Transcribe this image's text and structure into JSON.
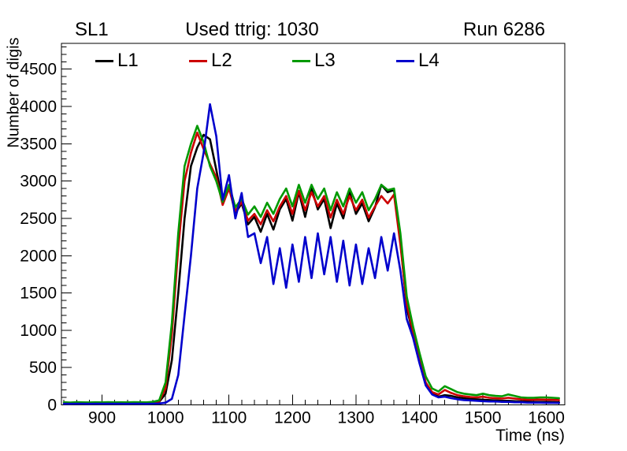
{
  "header": {
    "left": "SL1",
    "center": "Used ttrig: 1030",
    "right": "Run 6286"
  },
  "legend": {
    "items": [
      {
        "label": "L1",
        "color": "#000000"
      },
      {
        "label": "L2",
        "color": "#cc0000"
      },
      {
        "label": "L3",
        "color": "#009900"
      },
      {
        "label": "L4",
        "color": "#0000cc"
      }
    ]
  },
  "chart_data": {
    "type": "line",
    "title": "Used ttrig: 1030",
    "xlabel": "Time (ns)",
    "ylabel": "Number of digis",
    "xlim": [
      836,
      1629
    ],
    "ylim": [
      0,
      4846
    ],
    "grid": false,
    "legend_position": "top-inside",
    "x_major_ticks": [
      900,
      1000,
      1100,
      1200,
      1300,
      1400,
      1500,
      1600
    ],
    "x_minor_step": 20,
    "y_major_ticks": [
      0,
      500,
      1000,
      1500,
      2000,
      2500,
      3000,
      3500,
      4000,
      4500
    ],
    "y_minor_step": 100,
    "x": [
      840,
      850,
      860,
      870,
      880,
      890,
      900,
      910,
      920,
      930,
      940,
      950,
      960,
      970,
      980,
      990,
      1000,
      1010,
      1020,
      1030,
      1040,
      1050,
      1060,
      1070,
      1080,
      1090,
      1100,
      1110,
      1120,
      1130,
      1140,
      1150,
      1160,
      1170,
      1180,
      1190,
      1200,
      1210,
      1220,
      1230,
      1240,
      1250,
      1260,
      1270,
      1280,
      1290,
      1300,
      1310,
      1320,
      1330,
      1340,
      1350,
      1360,
      1370,
      1380,
      1390,
      1400,
      1410,
      1420,
      1430,
      1440,
      1450,
      1460,
      1470,
      1480,
      1490,
      1500,
      1510,
      1520,
      1530,
      1540,
      1550,
      1560,
      1570,
      1580,
      1590,
      1600,
      1610,
      1620
    ],
    "series": [
      {
        "name": "L1",
        "color": "#000000",
        "values": [
          20,
          18,
          22,
          20,
          19,
          21,
          20,
          22,
          20,
          21,
          20,
          22,
          21,
          20,
          25,
          40,
          150,
          600,
          1500,
          2500,
          3200,
          3450,
          3620,
          3560,
          3150,
          2720,
          2920,
          2570,
          2700,
          2420,
          2520,
          2320,
          2560,
          2350,
          2620,
          2760,
          2470,
          2850,
          2520,
          2900,
          2620,
          2760,
          2370,
          2700,
          2500,
          2850,
          2560,
          2700,
          2460,
          2650,
          2950,
          2850,
          2880,
          2200,
          1300,
          950,
          600,
          280,
          150,
          110,
          130,
          120,
          100,
          90,
          80,
          75,
          70,
          65,
          60,
          55,
          55,
          50,
          45,
          45,
          40,
          40,
          40,
          38,
          35
        ]
      },
      {
        "name": "L2",
        "color": "#cc0000",
        "values": [
          25,
          22,
          26,
          24,
          23,
          25,
          24,
          26,
          24,
          25,
          24,
          26,
          25,
          24,
          30,
          45,
          220,
          950,
          2100,
          3000,
          3380,
          3650,
          3430,
          3230,
          3050,
          2680,
          2900,
          2600,
          2720,
          2470,
          2560,
          2420,
          2610,
          2460,
          2660,
          2800,
          2560,
          2870,
          2610,
          2850,
          2660,
          2800,
          2510,
          2750,
          2560,
          2800,
          2610,
          2750,
          2510,
          2660,
          2800,
          2700,
          2820,
          2150,
          1350,
          980,
          620,
          300,
          170,
          140,
          200,
          160,
          130,
          115,
          105,
          100,
          110,
          95,
          90,
          85,
          95,
          85,
          75,
          70,
          70,
          72,
          70,
          68,
          65
        ]
      },
      {
        "name": "L3",
        "color": "#009900",
        "values": [
          35,
          32,
          36,
          34,
          33,
          35,
          34,
          36,
          34,
          35,
          34,
          36,
          35,
          34,
          40,
          60,
          300,
          1100,
          2300,
          3200,
          3500,
          3740,
          3520,
          3200,
          3000,
          2720,
          2950,
          2650,
          2760,
          2550,
          2660,
          2520,
          2710,
          2560,
          2760,
          2900,
          2660,
          2950,
          2710,
          2950,
          2760,
          2900,
          2610,
          2850,
          2660,
          2900,
          2710,
          2850,
          2610,
          2760,
          2950,
          2880,
          2900,
          2300,
          1450,
          1050,
          700,
          380,
          220,
          180,
          250,
          210,
          170,
          150,
          140,
          130,
          150,
          130,
          120,
          115,
          140,
          120,
          100,
          95,
          95,
          100,
          100,
          95,
          90
        ]
      },
      {
        "name": "L4",
        "color": "#0000cc",
        "values": [
          15,
          14,
          16,
          15,
          14,
          16,
          15,
          16,
          15,
          15,
          14,
          16,
          15,
          14,
          16,
          18,
          30,
          80,
          400,
          1200,
          2000,
          2900,
          3380,
          4030,
          3600,
          2750,
          3080,
          2500,
          2840,
          2250,
          2300,
          1900,
          2250,
          1620,
          2100,
          1570,
          2150,
          1650,
          2250,
          1700,
          2300,
          1750,
          2250,
          1650,
          2200,
          1600,
          2150,
          1620,
          2100,
          1700,
          2250,
          1800,
          2300,
          1800,
          1150,
          900,
          560,
          260,
          140,
          100,
          110,
          90,
          75,
          65,
          60,
          55,
          50,
          45,
          45,
          40,
          40,
          35,
          35,
          30,
          30,
          30,
          28,
          28,
          25
        ]
      }
    ]
  }
}
